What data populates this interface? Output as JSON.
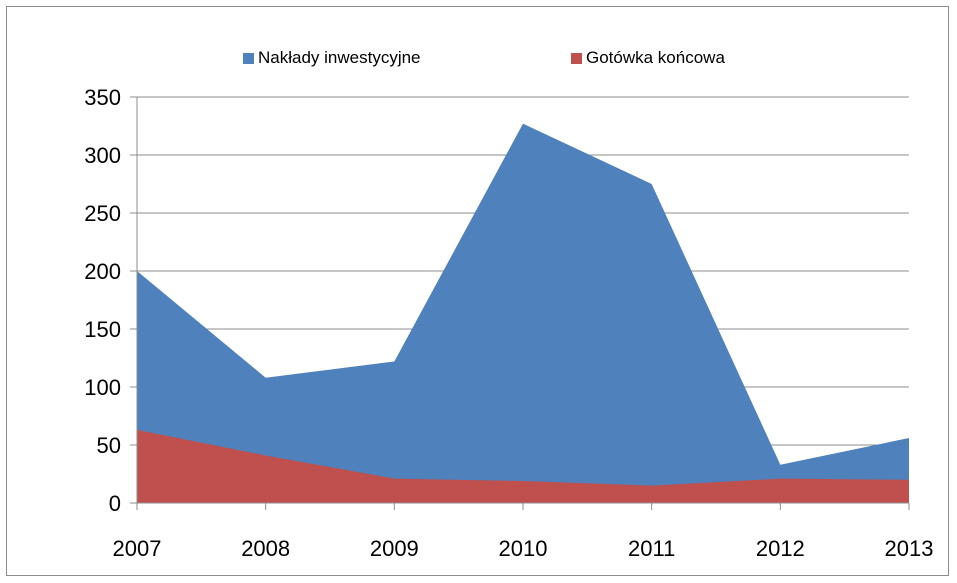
{
  "chart_data": {
    "type": "area",
    "categories": [
      "2007",
      "2008",
      "2009",
      "2010",
      "2011",
      "2012",
      "2013"
    ],
    "series": [
      {
        "name": "Nakłady inwestycyjne",
        "color": "#4F81BD",
        "values": [
          200,
          108,
          122,
          327,
          275,
          33,
          56
        ]
      },
      {
        "name": "Gotówka końcowa",
        "color": "#C0504D",
        "values": [
          63,
          41,
          21,
          19,
          15,
          21,
          20
        ]
      }
    ],
    "y_ticks": [
      "0",
      "50",
      "100",
      "150",
      "200",
      "250",
      "300",
      "350"
    ],
    "ylim": [
      0,
      350
    ],
    "grid": true,
    "legend_position": "top"
  }
}
